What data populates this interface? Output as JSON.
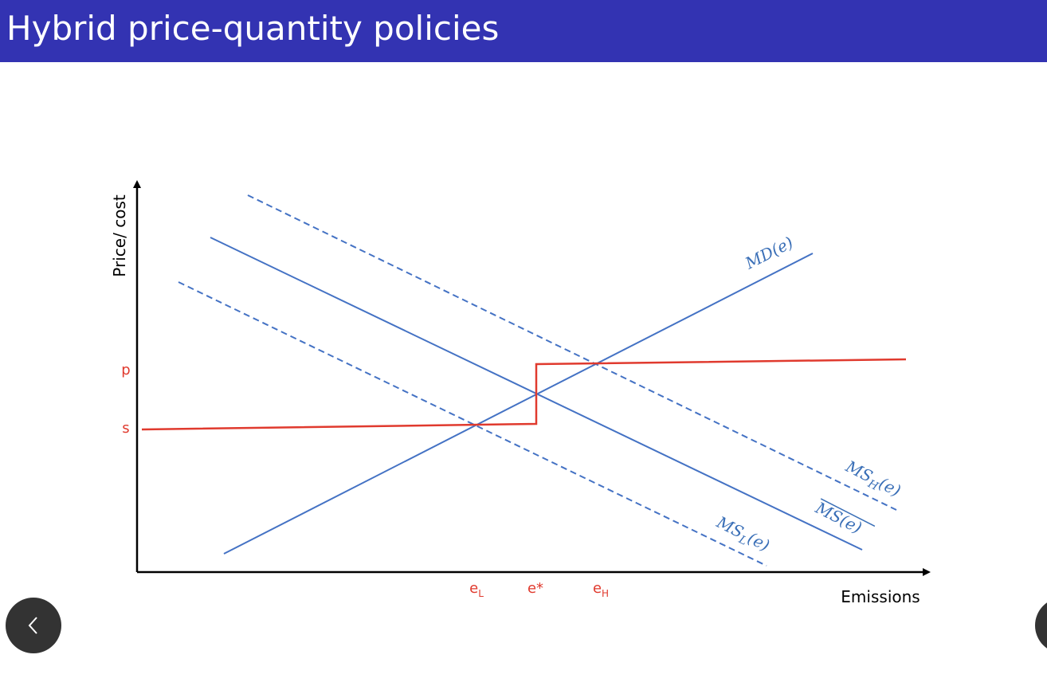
{
  "header": {
    "title": "Hybrid price-quantity policies"
  },
  "diagram": {
    "y_axis_label": "Price/ cost",
    "x_axis_label": "Emissions",
    "y_ticks": [
      "p",
      "s"
    ],
    "x_ticks": [
      {
        "base": "e",
        "sub": "L"
      },
      {
        "base": "e*"
      },
      {
        "base": "e",
        "sub": "H"
      }
    ],
    "curves": [
      {
        "base": "MD",
        "arg": "(e)"
      },
      {
        "base": "MS",
        "sub": "H",
        "arg": "(e)"
      },
      {
        "base": "MS",
        "arg": "(e)"
      },
      {
        "base": "MS",
        "sub": "L",
        "arg": "(e)"
      }
    ]
  }
}
